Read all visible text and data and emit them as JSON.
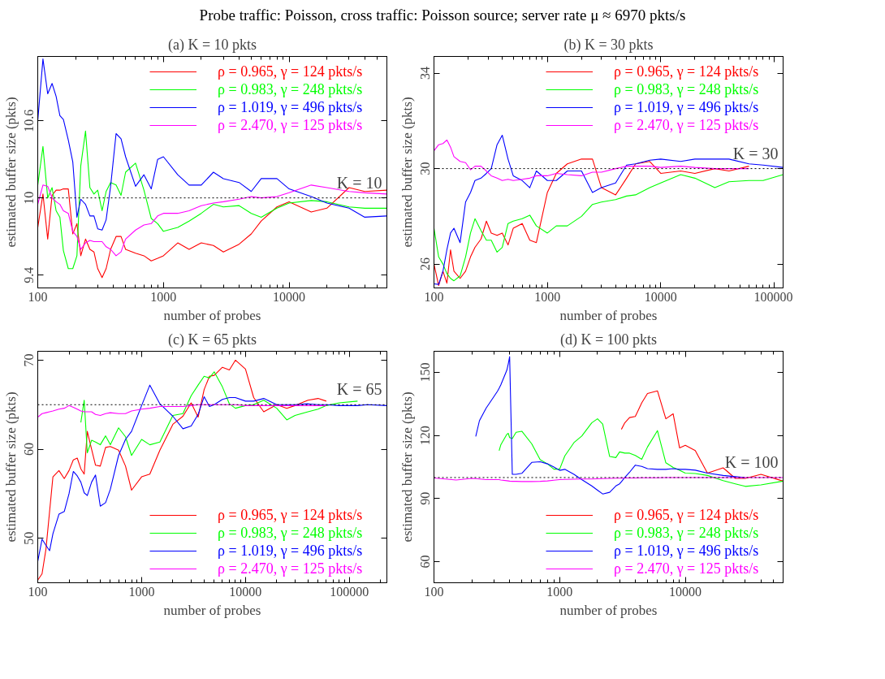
{
  "chart_data": [
    {
      "type": "line",
      "title": "(a) K = 10 pkts",
      "xlabel": "number of probes",
      "ylabel": "estimated buffer size (pkts)",
      "log": "x",
      "grid": false,
      "legend": "top right",
      "line_style": "solid",
      "annotations": [
        "Probe traffic: Poisson, cross traffic: Poisson source; server rate μ ≈ 6970 pkts/s"
      ],
      "xlim": [
        100,
        60000
      ],
      "ylim": [
        9.3,
        11.1
      ],
      "xticks": [
        100,
        1000,
        10000
      ],
      "yticks": [
        9.4,
        10,
        10.6
      ],
      "ref_lines": [
        {
          "axis": "y",
          "value": 10,
          "label": "K = 10",
          "color": "#000000",
          "line_style": "dotted"
        }
      ],
      "x": [
        100,
        110,
        120,
        130,
        140,
        150,
        160,
        175,
        190,
        205,
        220,
        240,
        260,
        280,
        300,
        325,
        350,
        380,
        420,
        460,
        500,
        600,
        700,
        800,
        900,
        1000,
        1300,
        1600,
        2000,
        2500,
        3000,
        4000,
        5000,
        6000,
        8000,
        10000,
        15000,
        20000,
        30000,
        40000,
        60000
      ],
      "series": [
        {
          "name": "ρ = 0.965, γ = 124 pkts/s",
          "color": "#ff0000",
          "values": [
            9.77,
            10.03,
            9.68,
            10.02,
            10.06,
            10.06,
            10.07,
            10.07,
            9.72,
            9.8,
            9.55,
            9.68,
            9.6,
            9.58,
            9.45,
            9.38,
            9.45,
            9.6,
            9.7,
            9.7,
            9.6,
            9.57,
            9.55,
            9.51,
            9.53,
            9.55,
            9.65,
            9.6,
            9.65,
            9.63,
            9.58,
            9.64,
            9.72,
            9.82,
            9.93,
            9.97,
            9.89,
            9.92,
            10.08,
            10.05,
            10.06
          ]
        },
        {
          "name": "ρ = 0.983, γ = 248 pkts/s",
          "color": "#00ff00",
          "values": [
            10.1,
            10.4,
            10.0,
            10.08,
            9.9,
            9.85,
            9.59,
            9.45,
            9.45,
            9.55,
            10.25,
            10.52,
            10.08,
            10.03,
            10.06,
            9.9,
            10.05,
            10.12,
            10.1,
            10.02,
            10.2,
            10.27,
            10.06,
            9.84,
            9.8,
            9.74,
            9.77,
            9.82,
            9.88,
            9.95,
            9.93,
            9.94,
            9.88,
            9.85,
            9.92,
            9.96,
            9.98,
            9.97,
            9.93,
            9.92,
            9.92
          ]
        },
        {
          "name": "ρ = 1.019, γ = 496 pkts/s",
          "color": "#0000ff",
          "values": [
            10.6,
            11.08,
            10.81,
            10.89,
            10.79,
            10.64,
            10.61,
            10.45,
            10.28,
            9.85,
            9.99,
            9.95,
            9.86,
            9.86,
            9.76,
            9.75,
            9.83,
            10.09,
            10.5,
            10.46,
            10.32,
            10.09,
            10.18,
            10.07,
            10.3,
            10.32,
            10.18,
            10.1,
            10.1,
            10.2,
            10.15,
            10.12,
            10.05,
            10.15,
            10.15,
            10.07,
            10.01,
            9.96,
            9.92,
            9.85,
            9.86
          ]
        },
        {
          "name": "ρ = 2.470, γ = 125 pkts/s",
          "color": "#ff00ff",
          "values": [
            9.95,
            10.1,
            10.09,
            10.0,
            9.97,
            9.95,
            9.9,
            9.88,
            9.74,
            9.7,
            9.6,
            9.65,
            9.67,
            9.66,
            9.66,
            9.66,
            9.62,
            9.6,
            9.55,
            9.58,
            9.68,
            9.75,
            9.79,
            9.8,
            9.86,
            9.88,
            9.88,
            9.9,
            9.94,
            9.96,
            9.97,
            9.99,
            10.01,
            10.0,
            10.01,
            10.04,
            10.1,
            10.08,
            10.05,
            10.04,
            10.03
          ]
        }
      ]
    },
    {
      "type": "line",
      "title": "(b) K = 30 pkts",
      "xlabel": "number of probes",
      "ylabel": "estimated buffer size (pkts)",
      "log": "x",
      "grid": false,
      "legend": "top right",
      "line_style": "solid",
      "xlim": [
        100,
        120000
      ],
      "ylim": [
        25,
        34.7
      ],
      "xticks": [
        100,
        1000,
        10000,
        100000
      ],
      "yticks": [
        26,
        30,
        34
      ],
      "ref_lines": [
        {
          "axis": "y",
          "value": 30,
          "label": "K = 30",
          "color": "#000000",
          "line_style": "dotted"
        }
      ],
      "x": [
        100,
        110,
        120,
        130,
        140,
        150,
        170,
        190,
        210,
        230,
        260,
        290,
        320,
        360,
        400,
        450,
        500,
        600,
        700,
        800,
        1000,
        1200,
        1500,
        2000,
        2500,
        3000,
        4000,
        5000,
        6000,
        8000,
        10000,
        15000,
        20000,
        30000,
        40000,
        60000,
        80000,
        120000
      ],
      "series": [
        {
          "name": "ρ = 0.965, γ = 124 pkts/s",
          "color": "#ff0000",
          "values": [
            26.0,
            25.1,
            25.7,
            25.2,
            26.6,
            25.7,
            25.4,
            25.7,
            26.3,
            26.7,
            27.05,
            27.8,
            27.3,
            27.2,
            27.3,
            26.8,
            27.5,
            27.7,
            27.0,
            26.9,
            29.0,
            29.8,
            30.2,
            30.4,
            30.4,
            29.2,
            28.9,
            29.6,
            30.2,
            30.3,
            29.8,
            29.9,
            29.8,
            30.0,
            29.9,
            30.1,
            null,
            null
          ]
        },
        {
          "name": "ρ = 0.983, γ = 248 pkts/s",
          "color": "#00ff00",
          "values": [
            27.5,
            26.3,
            26.0,
            25.6,
            25.4,
            25.3,
            25.5,
            26.3,
            27.3,
            27.9,
            27.4,
            27.0,
            27.0,
            26.5,
            26.7,
            27.7,
            27.8,
            27.9,
            28.05,
            27.6,
            27.3,
            27.6,
            27.6,
            28.0,
            28.5,
            28.6,
            28.7,
            28.85,
            28.9,
            29.2,
            29.4,
            29.75,
            29.6,
            29.2,
            29.45,
            29.5,
            29.5,
            29.75
          ]
        },
        {
          "name": "ρ = 1.019, γ = 496 pkts/s",
          "color": "#0000ff",
          "values": [
            25.17,
            25.15,
            25.7,
            26.6,
            27.3,
            27.5,
            26.9,
            28.6,
            29.0,
            29.5,
            29.6,
            29.8,
            30.0,
            31.0,
            31.4,
            30.4,
            29.7,
            29.5,
            29.2,
            29.9,
            29.5,
            29.5,
            29.9,
            29.9,
            29.0,
            29.2,
            29.4,
            30.15,
            30.2,
            30.35,
            30.4,
            30.3,
            30.4,
            30.4,
            30.4,
            30.2,
            30.15,
            30.05
          ]
        },
        {
          "name": "ρ = 2.470, γ = 125 pkts/s",
          "color": "#ff00ff",
          "values": [
            30.75,
            31.0,
            31.05,
            31.2,
            30.9,
            30.5,
            30.3,
            30.25,
            29.95,
            30.1,
            30.1,
            29.9,
            29.7,
            29.6,
            29.5,
            29.55,
            29.5,
            29.55,
            29.6,
            29.7,
            29.7,
            29.8,
            29.75,
            29.7,
            29.85,
            29.85,
            30.0,
            30.1,
            30.1,
            30.1,
            30.05,
            30.1,
            30.05,
            30.0,
            30.0,
            30.0,
            null,
            null
          ]
        }
      ]
    },
    {
      "type": "line",
      "title": "(c) K = 65 pkts",
      "xlabel": "number of probes",
      "ylabel": "estimated buffer size (pkts)",
      "log": "x",
      "grid": false,
      "legend": "bottom right",
      "line_style": "solid",
      "xlim": [
        100,
        230000
      ],
      "ylim": [
        45,
        71
      ],
      "xticks": [
        100,
        1000,
        10000,
        100000
      ],
      "yticks": [
        50,
        60,
        70
      ],
      "ref_lines": [
        {
          "axis": "y",
          "value": 65,
          "label": "K = 65",
          "color": "#000000",
          "line_style": "dotted"
        }
      ],
      "x": [
        100,
        110,
        120,
        130,
        140,
        160,
        180,
        200,
        220,
        240,
        260,
        280,
        300,
        330,
        360,
        400,
        450,
        500,
        600,
        700,
        800,
        1000,
        1200,
        1500,
        2000,
        2500,
        3000,
        3500,
        4000,
        4500,
        5000,
        6000,
        7000,
        8000,
        10000,
        12000,
        15000,
        20000,
        25000,
        30000,
        40000,
        50000,
        60000,
        80000,
        120000,
        150000,
        230000
      ],
      "series": [
        {
          "name": "ρ = 0.965, γ = 124 pkts/s",
          "color": "#ff0000",
          "values": [
            45.3,
            46.0,
            48.8,
            53.0,
            56.9,
            57.6,
            56.7,
            57.6,
            58.8,
            59.0,
            57.8,
            57.2,
            62.0,
            60.0,
            58.2,
            58.1,
            60.2,
            60.3,
            59.9,
            58.1,
            55.4,
            56.9,
            57.2,
            59.9,
            62.8,
            63.7,
            65.2,
            63.6,
            66.7,
            68.2,
            68.3,
            69.2,
            68.9,
            70.0,
            69.0,
            65.8,
            64.2,
            65.0,
            64.6,
            64.9,
            65.5,
            65.7,
            65.4,
            null,
            null,
            null,
            null
          ]
        },
        {
          "name": "ρ = 0.983, γ = 248 pkts/s",
          "color": "#00ff00",
          "values": [
            null,
            null,
            null,
            null,
            null,
            null,
            null,
            null,
            null,
            null,
            63.0,
            65.5,
            59.6,
            61.0,
            60.8,
            60.5,
            61.5,
            60.5,
            62.4,
            61.4,
            59.3,
            61.1,
            60.5,
            60.8,
            63.8,
            64.0,
            66.0,
            67.2,
            68.2,
            68.0,
            68.7,
            67.0,
            65.1,
            64.6,
            64.9,
            65.0,
            65.5,
            64.6,
            63.3,
            63.8,
            64.2,
            64.5,
            64.9,
            65.2,
            65.4,
            null,
            null
          ]
        },
        {
          "name": "ρ = 1.019, γ = 496 pkts/s",
          "color": "#0000ff",
          "values": [
            47.4,
            49.9,
            49.2,
            48.6,
            50.5,
            52.7,
            53.0,
            55.0,
            57.5,
            57.0,
            56.3,
            55.1,
            54.8,
            56.3,
            57.1,
            53.6,
            54.0,
            55.5,
            59.3,
            61.1,
            62.0,
            64.9,
            67.2,
            65.1,
            63.7,
            62.3,
            62.6,
            63.9,
            65.9,
            64.8,
            65.0,
            65.6,
            65.8,
            65.8,
            65.4,
            65.4,
            65.7,
            65.0,
            65.0,
            65.0,
            65.1,
            65.0,
            65.0,
            64.9,
            64.9,
            65.0,
            64.9
          ]
        },
        {
          "name": "ρ = 2.470, γ = 125 pkts/s",
          "color": "#ff00ff",
          "values": [
            63.6,
            64.0,
            64.1,
            64.2,
            64.3,
            64.5,
            64.6,
            64.9,
            64.7,
            64.5,
            64.3,
            64.2,
            64.2,
            64.2,
            63.9,
            63.8,
            64.0,
            64.1,
            64.0,
            64.0,
            64.3,
            64.5,
            64.6,
            64.8,
            64.8,
            64.8,
            64.9,
            65.0,
            65.0,
            65.0,
            65.0,
            65.0,
            65.0,
            65.0,
            64.9,
            64.9,
            64.9,
            64.9,
            64.9,
            64.9,
            64.9,
            64.9,
            64.9,
            null,
            null,
            null,
            null
          ]
        }
      ]
    },
    {
      "type": "line",
      "title": "(d) K = 100 pkts",
      "xlabel": "number of probes",
      "ylabel": "estimated buffer size (pkts)",
      "log": "x",
      "grid": false,
      "legend": "bottom right",
      "line_style": "solid",
      "xlim": [
        100,
        60000
      ],
      "ylim": [
        50,
        160
      ],
      "xticks": [
        100,
        1000,
        10000
      ],
      "yticks": [
        60,
        90,
        120,
        150
      ],
      "ref_lines": [
        {
          "axis": "y",
          "value": 100,
          "label": "K = 100",
          "color": "#000000",
          "line_style": "dotted"
        }
      ],
      "x": [
        100,
        150,
        200,
        215,
        230,
        260,
        300,
        320,
        330,
        340,
        380,
        390,
        400,
        420,
        450,
        500,
        600,
        700,
        800,
        900,
        1000,
        1100,
        1300,
        1500,
        1800,
        2000,
        2200,
        2500,
        2800,
        3000,
        3100,
        3300,
        3600,
        4000,
        4500,
        5000,
        6000,
        7000,
        8000,
        9000,
        10000,
        12000,
        15000,
        20000,
        25000,
        30000,
        40000,
        60000
      ],
      "series": [
        {
          "name": "ρ = 0.965, γ = 124 pkts/s",
          "color": "#ff0000",
          "values": [
            null,
            null,
            null,
            null,
            null,
            null,
            null,
            null,
            null,
            null,
            null,
            null,
            null,
            null,
            null,
            null,
            null,
            null,
            null,
            null,
            null,
            null,
            null,
            null,
            null,
            null,
            null,
            null,
            null,
            null,
            122.9,
            126.0,
            128.5,
            129.0,
            135.5,
            139.9,
            141.2,
            127.9,
            130.3,
            114.1,
            115.3,
            112.8,
            102.1,
            104.6,
            99.6,
            99.6,
            101.5,
            98.3
          ]
        },
        {
          "name": "ρ = 0.983, γ = 248 pkts/s",
          "color": "#00ff00",
          "values": [
            null,
            null,
            null,
            null,
            null,
            null,
            null,
            null,
            112.8,
            115.5,
            120.5,
            121.0,
            119.0,
            118.5,
            121.5,
            122.0,
            116.0,
            108.5,
            106.5,
            104.0,
            104.0,
            110.3,
            116.6,
            119.7,
            126.0,
            127.9,
            125.4,
            110.0,
            109.5,
            112.2,
            112.0,
            111.6,
            111.6,
            110.5,
            108.7,
            114.5,
            122.3,
            107.0,
            104.8,
            103.5,
            102.1,
            101.9,
            101.0,
            98.5,
            97.0,
            95.8,
            96.5,
            98.3
          ]
        },
        {
          "name": "ρ = 1.019, γ = 496 pkts/s",
          "color": "#0000ff",
          "values": [
            null,
            null,
            null,
            119.5,
            127.0,
            133.0,
            138.5,
            141.0,
            142.4,
            144.0,
            151.0,
            154.0,
            157.5,
            101.5,
            101.5,
            102.0,
            107.2,
            107.5,
            106.5,
            105.0,
            103.4,
            103.9,
            101.5,
            99.0,
            96.0,
            94.0,
            92.2,
            93.0,
            96.0,
            97.0,
            98.0,
            100.0,
            102.5,
            105.9,
            105.3,
            104.2,
            103.9,
            103.9,
            104.2,
            103.9,
            103.9,
            103.5,
            102.1,
            101.0,
            100.4,
            100.0,
            null,
            null
          ]
        },
        {
          "name": "ρ = 2.470, γ = 125 pkts/s",
          "color": "#ff00ff",
          "values": [
            99.8,
            98.8,
            99.6,
            99.5,
            99.3,
            99.0,
            99.0,
            99.0,
            99.0,
            98.8,
            98.5,
            98.4,
            98.3,
            98.2,
            98.2,
            98.1,
            98.1,
            98.2,
            98.4,
            98.7,
            99.0,
            99.1,
            99.2,
            99.3,
            99.3,
            99.4,
            99.5,
            99.6,
            99.7,
            99.7,
            99.7,
            99.8,
            99.8,
            99.8,
            99.9,
            99.9,
            99.9,
            100.0,
            100.0,
            100.0,
            100.0,
            100.0,
            100.0,
            100.0,
            100.0,
            100.0,
            100.0,
            100.0
          ]
        }
      ]
    }
  ]
}
